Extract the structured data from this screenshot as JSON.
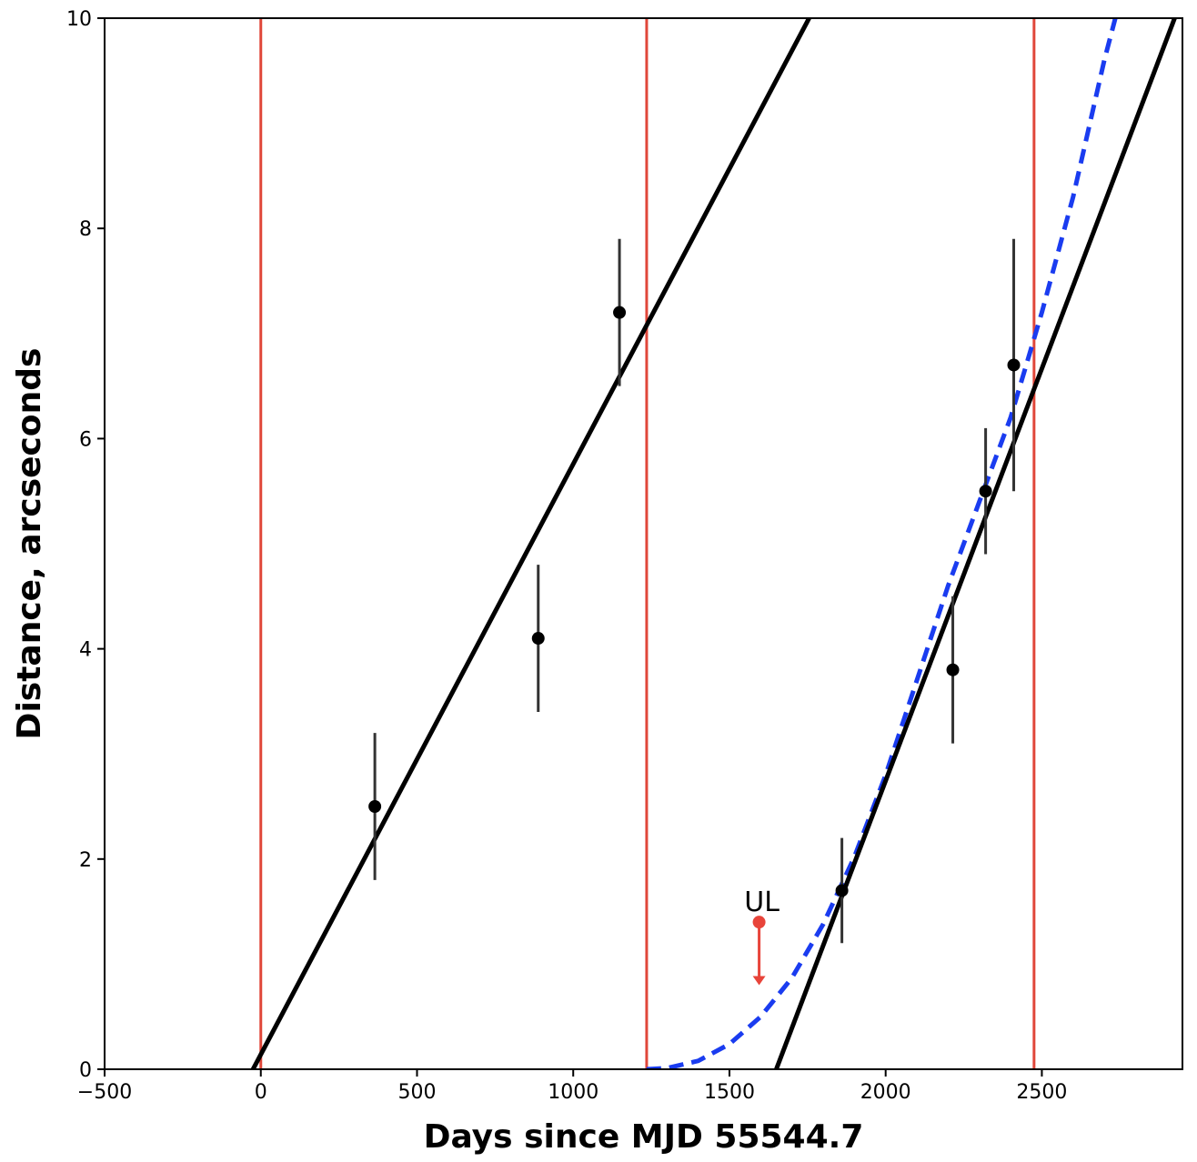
{
  "chart_data": {
    "type": "scatter",
    "title": "",
    "xlabel": "Days since MJD 55544.7",
    "ylabel": "Distance, arcseconds",
    "xlim": [
      -500,
      2950
    ],
    "ylim": [
      0,
      10
    ],
    "xticks": [
      -500,
      0,
      500,
      1000,
      1500,
      2000,
      2500
    ],
    "xtick_labels": [
      "−500",
      "0",
      "500",
      "1000",
      "1500",
      "2000",
      "2500"
    ],
    "yticks": [
      0,
      2,
      4,
      6,
      8,
      10
    ],
    "ytick_labels": [
      "0",
      "2",
      "4",
      "6",
      "8",
      "10"
    ],
    "grid": false,
    "legend": "none",
    "colors": {
      "points": "#000000",
      "errorbars": "#333333",
      "vlines": "#e0473a",
      "fit_lines": "#000000",
      "dashed_curve": "#1a3cf0",
      "upper_limit": "#e8443a"
    },
    "points": [
      {
        "x": 365,
        "y": 2.5,
        "yerr": 0.7
      },
      {
        "x": 888,
        "y": 4.1,
        "yerr": 0.7
      },
      {
        "x": 1148,
        "y": 7.2,
        "yerr": 0.7
      },
      {
        "x": 1860,
        "y": 1.7,
        "yerr": 0.5
      },
      {
        "x": 2215,
        "y": 3.8,
        "yerr": 0.7
      },
      {
        "x": 2320,
        "y": 5.5,
        "yerr": 0.6
      },
      {
        "x": 2410,
        "y": 6.7,
        "yerr": 1.2
      }
    ],
    "vertical_lines_x": [
      0,
      1235,
      2475
    ],
    "fit_lines": [
      {
        "x": [
          -25,
          1755
        ],
        "y": [
          0,
          10
        ]
      },
      {
        "x": 1650,
        "y": 0,
        "x2": 2925,
        "y2": 10
      }
    ],
    "dashed_curve": {
      "x": [
        1235,
        1300,
        1400,
        1500,
        1600,
        1700,
        1800,
        1900,
        2000,
        2100,
        2200,
        2300,
        2400,
        2500,
        2600,
        2700,
        2735
      ],
      "y": [
        0,
        0.01,
        0.08,
        0.24,
        0.5,
        0.87,
        1.38,
        2.02,
        2.8,
        3.7,
        4.6,
        5.4,
        6.2,
        7.2,
        8.3,
        9.6,
        10
      ]
    },
    "upper_limit": {
      "x": 1595,
      "y": 1.4,
      "arrow_to": 0.8,
      "label": "UL"
    }
  }
}
